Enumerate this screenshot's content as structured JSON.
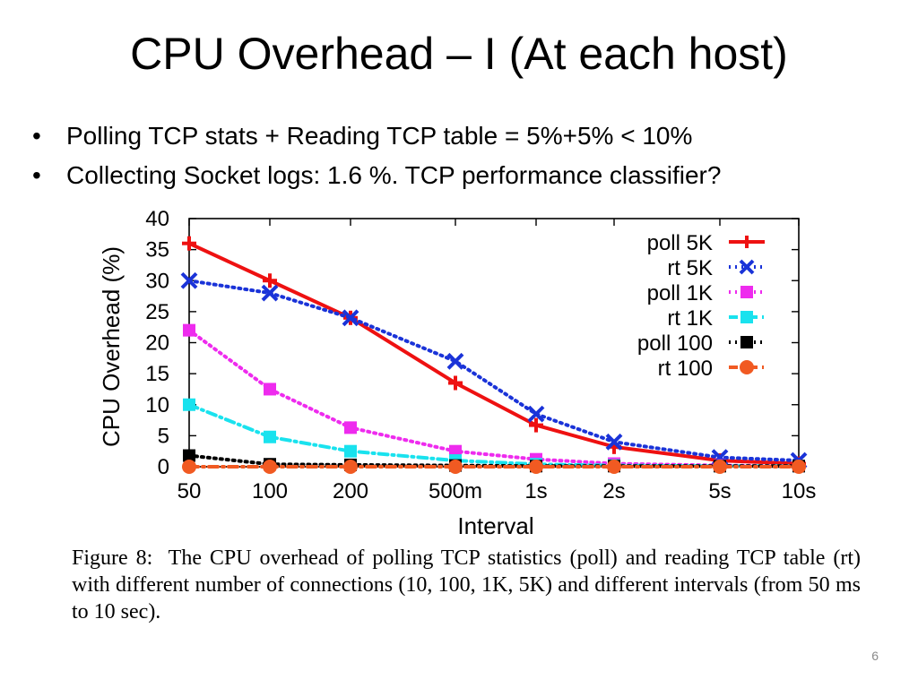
{
  "slide": {
    "title": "CPU Overhead – I (At each host)",
    "bullets": [
      "Polling TCP stats + Reading TCP table = 5%+5% < 10%",
      "Collecting Socket logs: 1.6 %.   TCP performance classifier?"
    ],
    "page_number": "6"
  },
  "caption": {
    "label": "Figure 8:  ",
    "text": "The CPU overhead of polling TCP statistics (poll) and reading TCP table (rt) with different number of connections (10, 100, 1K, 5K) and different intervals (from 50 ms to 10 sec)."
  },
  "chart_data": {
    "type": "line",
    "categories": [
      "50",
      "100",
      "200",
      "500m",
      "1s",
      "2s",
      "5s",
      "10s"
    ],
    "xlabel": "Interval",
    "ylabel": "CPU Overhead (%)",
    "ylim": [
      0,
      40
    ],
    "yticks": [
      0,
      5,
      10,
      15,
      20,
      25,
      30,
      35,
      40
    ],
    "legend_position": "top-right",
    "series": [
      {
        "name": "poll 5K",
        "color": "#ee1111",
        "marker": "plus",
        "dash": "solid",
        "values": [
          36,
          30,
          24,
          13.5,
          6.7,
          3.2,
          1,
          0.5
        ]
      },
      {
        "name": "rt 5K",
        "color": "#1a33d8",
        "marker": "cross",
        "dash": "dot",
        "values": [
          30,
          28,
          24,
          17,
          8.5,
          4,
          1.5,
          1
        ]
      },
      {
        "name": "poll 1K",
        "color": "#ee2bee",
        "marker": "square",
        "dash": "dot",
        "values": [
          22,
          12.5,
          6.3,
          2.5,
          1.2,
          0.5,
          0.2,
          0.1
        ]
      },
      {
        "name": "rt 1K",
        "color": "#19e2ee",
        "marker": "square",
        "dash": "dashdot",
        "values": [
          10,
          4.8,
          2.5,
          1,
          0.4,
          0.2,
          0.1,
          0.1
        ]
      },
      {
        "name": "poll 100",
        "color": "#000000",
        "marker": "square",
        "dash": "dot",
        "values": [
          1.8,
          0.4,
          0.3,
          0.2,
          0.1,
          0.1,
          0.1,
          0.1
        ]
      },
      {
        "name": "rt 100",
        "color": "#f15a22",
        "marker": "circle",
        "dash": "dashdot",
        "values": [
          0,
          0,
          0,
          0,
          0,
          0,
          0,
          0
        ]
      }
    ]
  }
}
